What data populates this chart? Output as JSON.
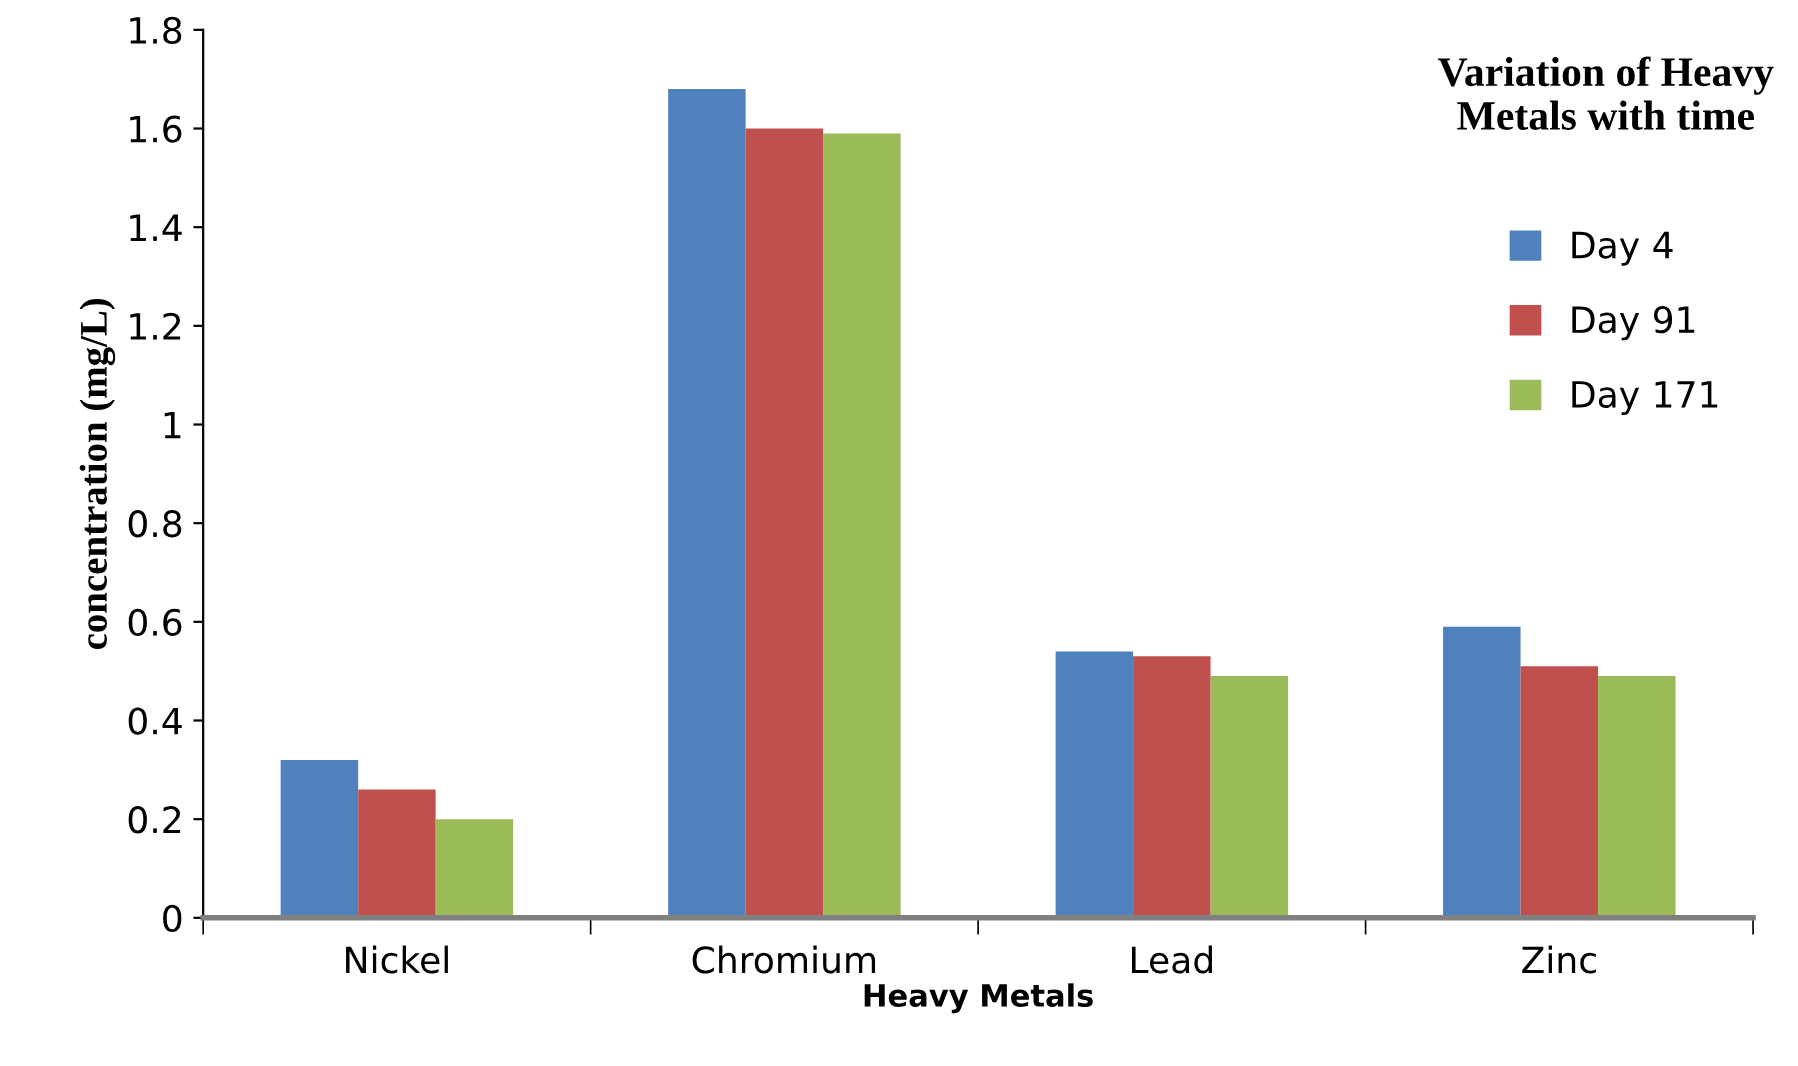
{
  "chart_data": {
    "type": "bar",
    "title": "Variation of Heavy\nMetals with time",
    "xlabel": "Heavy Metals",
    "ylabel": "concentration (mg/L)",
    "categories": [
      "Nickel",
      "Chromium",
      "Lead",
      "Zinc"
    ],
    "series": [
      {
        "name": "Day 4",
        "color": "#4f81bd",
        "values": [
          0.32,
          1.68,
          0.54,
          0.59
        ]
      },
      {
        "name": "Day 91",
        "color": "#c0504d",
        "values": [
          0.26,
          1.6,
          0.53,
          0.51
        ]
      },
      {
        "name": "Day 171",
        "color": "#9bbb59",
        "values": [
          0.2,
          1.59,
          0.49,
          0.49
        ]
      }
    ],
    "ylim": [
      0,
      1.8
    ],
    "yticks": [
      0,
      0.2,
      0.4,
      0.6,
      0.8,
      1,
      1.2,
      1.4,
      1.6,
      1.8
    ],
    "grid": false,
    "legend": "right"
  }
}
